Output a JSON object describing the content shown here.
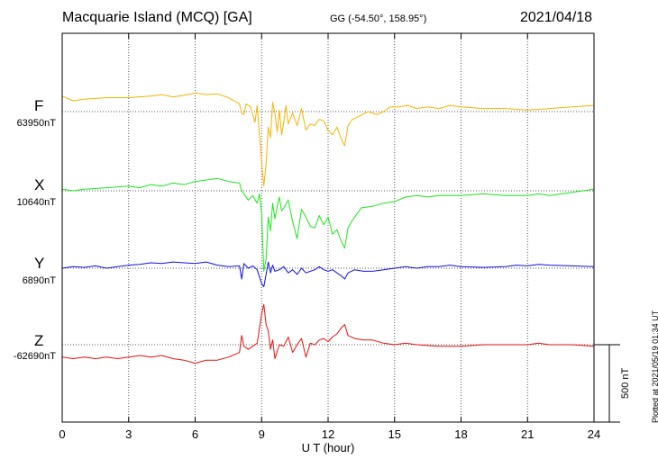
{
  "header": {
    "station": "Macquarie Island (MCQ)  [GA]",
    "coords": "GG (-54.50°, 158.95°)",
    "date": "2021/04/18"
  },
  "side_note": "Plotted at 2021/05/19 01:34  UT",
  "chart_data": {
    "type": "line",
    "xlabel": "U T (hour)",
    "xlim": [
      0,
      24
    ],
    "xticks": [
      "0",
      "3",
      "6",
      "9",
      "12",
      "15",
      "18",
      "21",
      "24"
    ],
    "grid": true,
    "scale_bar": {
      "label": "500 nT",
      "value": 500
    },
    "series": [
      {
        "name": "F",
        "baseline_label": "63950nT",
        "baseline": 63950,
        "color": "#f5b400",
        "points": [
          [
            0,
            64050
          ],
          [
            0.5,
            64020
          ],
          [
            1,
            64030
          ],
          [
            2,
            64040
          ],
          [
            3,
            64040
          ],
          [
            4,
            64050
          ],
          [
            4.5,
            64060
          ],
          [
            5,
            64045
          ],
          [
            5.5,
            64055
          ],
          [
            6,
            64070
          ],
          [
            6.5,
            64060
          ],
          [
            7,
            64065
          ],
          [
            7.5,
            64040
          ],
          [
            8,
            64000
          ],
          [
            8.1,
            63940
          ],
          [
            8.2,
            63930
          ],
          [
            8.3,
            64000
          ],
          [
            8.5,
            63980
          ],
          [
            8.7,
            63880
          ],
          [
            8.8,
            63990
          ],
          [
            9.0,
            63620
          ],
          [
            9.1,
            63470
          ],
          [
            9.2,
            63610
          ],
          [
            9.3,
            63850
          ],
          [
            9.4,
            63780
          ],
          [
            9.5,
            64010
          ],
          [
            9.6,
            63940
          ],
          [
            9.7,
            63820
          ],
          [
            9.8,
            63960
          ],
          [
            9.9,
            63800
          ],
          [
            10.0,
            63880
          ],
          [
            10.1,
            63990
          ],
          [
            10.2,
            63870
          ],
          [
            10.4,
            63940
          ],
          [
            10.6,
            63860
          ],
          [
            10.8,
            63970
          ],
          [
            11.0,
            63830
          ],
          [
            11.2,
            63870
          ],
          [
            11.4,
            63860
          ],
          [
            11.6,
            63900
          ],
          [
            11.8,
            63890
          ],
          [
            12.0,
            63830
          ],
          [
            12.2,
            63800
          ],
          [
            12.4,
            63850
          ],
          [
            12.6,
            63770
          ],
          [
            12.75,
            63730
          ],
          [
            12.9,
            63860
          ],
          [
            13.1,
            63900
          ],
          [
            13.4,
            63920
          ],
          [
            13.8,
            63950
          ],
          [
            14.2,
            63930
          ],
          [
            14.5,
            63950
          ],
          [
            14.8,
            63980
          ],
          [
            15.2,
            63980
          ],
          [
            15.6,
            63990
          ],
          [
            16,
            63970
          ],
          [
            16.5,
            63980
          ],
          [
            17,
            63970
          ],
          [
            17.5,
            63990
          ],
          [
            18,
            63980
          ],
          [
            19,
            63970
          ],
          [
            20,
            63970
          ],
          [
            21,
            63960
          ],
          [
            22,
            63970
          ],
          [
            23,
            63980
          ],
          [
            24,
            63990
          ]
        ]
      },
      {
        "name": "X",
        "baseline_label": "10640nT",
        "baseline": 10640,
        "color": "#1ce61c",
        "points": [
          [
            0,
            10650
          ],
          [
            0.5,
            10640
          ],
          [
            1,
            10650
          ],
          [
            2,
            10660
          ],
          [
            3,
            10670
          ],
          [
            3.5,
            10660
          ],
          [
            4,
            10680
          ],
          [
            4.5,
            10670
          ],
          [
            5,
            10690
          ],
          [
            5.5,
            10680
          ],
          [
            6,
            10700
          ],
          [
            6.5,
            10710
          ],
          [
            7,
            10720
          ],
          [
            7.5,
            10700
          ],
          [
            8,
            10690
          ],
          [
            8.1,
            10640
          ],
          [
            8.2,
            10620
          ],
          [
            8.4,
            10580
          ],
          [
            8.6,
            10610
          ],
          [
            8.8,
            10560
          ],
          [
            8.9,
            10620
          ],
          [
            9.0,
            10490
          ],
          [
            9.1,
            10120
          ],
          [
            9.2,
            10200
          ],
          [
            9.3,
            10470
          ],
          [
            9.4,
            10380
          ],
          [
            9.5,
            10560
          ],
          [
            9.6,
            10460
          ],
          [
            9.7,
            10540
          ],
          [
            9.8,
            10600
          ],
          [
            9.9,
            10510
          ],
          [
            10.0,
            10530
          ],
          [
            10.2,
            10580
          ],
          [
            10.4,
            10440
          ],
          [
            10.6,
            10330
          ],
          [
            10.8,
            10520
          ],
          [
            11.0,
            10470
          ],
          [
            11.2,
            10410
          ],
          [
            11.4,
            10400
          ],
          [
            11.6,
            10480
          ],
          [
            11.8,
            10420
          ],
          [
            12.0,
            10470
          ],
          [
            12.2,
            10360
          ],
          [
            12.4,
            10390
          ],
          [
            12.6,
            10310
          ],
          [
            12.75,
            10270
          ],
          [
            12.9,
            10400
          ],
          [
            13.1,
            10450
          ],
          [
            13.5,
            10530
          ],
          [
            14.0,
            10540
          ],
          [
            14.5,
            10560
          ],
          [
            15,
            10570
          ],
          [
            15.5,
            10600
          ],
          [
            16,
            10610
          ],
          [
            16.5,
            10600
          ],
          [
            17,
            10610
          ],
          [
            18,
            10610
          ],
          [
            19,
            10620
          ],
          [
            20,
            10610
          ],
          [
            21,
            10610
          ],
          [
            21.5,
            10620
          ],
          [
            22,
            10610
          ],
          [
            23,
            10630
          ],
          [
            24,
            10650
          ]
        ]
      },
      {
        "name": "Y",
        "baseline_label": "6890nT",
        "baseline": 6890,
        "color": "#1010e6",
        "points": [
          [
            0,
            6890
          ],
          [
            0.5,
            6900
          ],
          [
            1,
            6895
          ],
          [
            1.5,
            6905
          ],
          [
            2,
            6890
          ],
          [
            2.5,
            6900
          ],
          [
            3,
            6910
          ],
          [
            3.5,
            6915
          ],
          [
            4,
            6925
          ],
          [
            4.5,
            6920
          ],
          [
            5,
            6930
          ],
          [
            5.5,
            6925
          ],
          [
            6,
            6920
          ],
          [
            6.5,
            6930
          ],
          [
            7,
            6910
          ],
          [
            7.5,
            6900
          ],
          [
            8,
            6905
          ],
          [
            8.1,
            6820
          ],
          [
            8.2,
            6920
          ],
          [
            8.4,
            6890
          ],
          [
            8.6,
            6905
          ],
          [
            8.8,
            6880
          ],
          [
            9.0,
            6790
          ],
          [
            9.1,
            6770
          ],
          [
            9.2,
            6850
          ],
          [
            9.3,
            6930
          ],
          [
            9.4,
            6860
          ],
          [
            9.5,
            6910
          ],
          [
            9.6,
            6870
          ],
          [
            9.8,
            6880
          ],
          [
            10.0,
            6900
          ],
          [
            10.2,
            6860
          ],
          [
            10.4,
            6880
          ],
          [
            10.6,
            6850
          ],
          [
            10.8,
            6890
          ],
          [
            11.0,
            6860
          ],
          [
            11.2,
            6870
          ],
          [
            11.4,
            6880
          ],
          [
            11.6,
            6900
          ],
          [
            11.8,
            6880
          ],
          [
            12.0,
            6870
          ],
          [
            12.2,
            6880
          ],
          [
            12.4,
            6860
          ],
          [
            12.6,
            6840
          ],
          [
            12.75,
            6820
          ],
          [
            12.9,
            6860
          ],
          [
            13.2,
            6880
          ],
          [
            13.6,
            6870
          ],
          [
            14.0,
            6870
          ],
          [
            14.5,
            6880
          ],
          [
            15,
            6890
          ],
          [
            15.5,
            6900
          ],
          [
            16,
            6890
          ],
          [
            16.5,
            6900
          ],
          [
            17,
            6900
          ],
          [
            17.5,
            6910
          ],
          [
            18,
            6900
          ],
          [
            19,
            6895
          ],
          [
            20,
            6900
          ],
          [
            20.5,
            6910
          ],
          [
            21,
            6905
          ],
          [
            21.5,
            6915
          ],
          [
            22,
            6910
          ],
          [
            23,
            6905
          ],
          [
            24,
            6900
          ]
        ]
      },
      {
        "name": "Z",
        "baseline_label": "-62690nT",
        "baseline": -62690,
        "color": "#e61010",
        "points": [
          [
            0,
            -62770
          ],
          [
            0.5,
            -62780
          ],
          [
            1,
            -62770
          ],
          [
            1.5,
            -62780
          ],
          [
            2,
            -62770
          ],
          [
            2.5,
            -62780
          ],
          [
            3,
            -62770
          ],
          [
            3.5,
            -62760
          ],
          [
            4,
            -62770
          ],
          [
            4.5,
            -62760
          ],
          [
            5,
            -62780
          ],
          [
            5.5,
            -62790
          ],
          [
            6,
            -62810
          ],
          [
            6.5,
            -62790
          ],
          [
            7,
            -62790
          ],
          [
            7.5,
            -62770
          ],
          [
            8,
            -62740
          ],
          [
            8.1,
            -62630
          ],
          [
            8.2,
            -62700
          ],
          [
            8.4,
            -62720
          ],
          [
            8.6,
            -62700
          ],
          [
            8.8,
            -62680
          ],
          [
            9.0,
            -62490
          ],
          [
            9.1,
            -62430
          ],
          [
            9.2,
            -62560
          ],
          [
            9.3,
            -62600
          ],
          [
            9.4,
            -62720
          ],
          [
            9.5,
            -62660
          ],
          [
            9.6,
            -62780
          ],
          [
            9.8,
            -62690
          ],
          [
            10.0,
            -62700
          ],
          [
            10.2,
            -62640
          ],
          [
            10.4,
            -62740
          ],
          [
            10.6,
            -62690
          ],
          [
            10.8,
            -62650
          ],
          [
            11.0,
            -62770
          ],
          [
            11.2,
            -62680
          ],
          [
            11.4,
            -62690
          ],
          [
            11.6,
            -62660
          ],
          [
            11.8,
            -62650
          ],
          [
            12.0,
            -62670
          ],
          [
            12.2,
            -62640
          ],
          [
            12.4,
            -62620
          ],
          [
            12.6,
            -62580
          ],
          [
            12.75,
            -62560
          ],
          [
            12.9,
            -62630
          ],
          [
            13.2,
            -62650
          ],
          [
            13.6,
            -62660
          ],
          [
            14.0,
            -62660
          ],
          [
            14.5,
            -62680
          ],
          [
            15,
            -62690
          ],
          [
            15.5,
            -62680
          ],
          [
            16,
            -62690
          ],
          [
            17,
            -62700
          ],
          [
            18,
            -62700
          ],
          [
            19,
            -62690
          ],
          [
            20,
            -62690
          ],
          [
            21,
            -62690
          ],
          [
            21.5,
            -62680
          ],
          [
            22,
            -62690
          ],
          [
            23,
            -62690
          ],
          [
            24,
            -62700
          ]
        ]
      }
    ]
  }
}
